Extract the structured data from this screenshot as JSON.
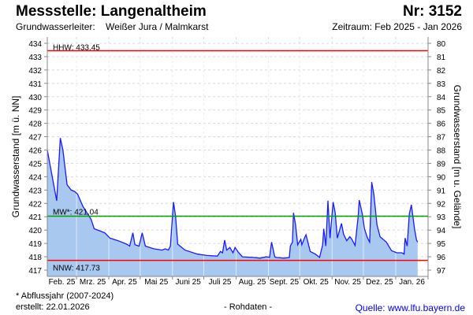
{
  "header": {
    "title": "Messstelle: Langenaltheim",
    "nr": "Nr: 3152",
    "aquifer_label": "Grundwasserleiter:",
    "aquifer_value": "Weißer Jura / Malmkarst",
    "period": "Zeitraum: Feb 2025 - Jan 2026"
  },
  "footer": {
    "note": "* Abflussjahr (2007-2024)",
    "created": "erstellt:  22.01.2026",
    "raw": "- Rohdaten -",
    "source": "Quelle: www.lfu.bayern.de"
  },
  "chart_data": {
    "type": "area",
    "title": "Messstelle: Langenaltheim",
    "ylabel": "Grundwasserstand [m ü. NN]",
    "y2label": "Grundwasserstand [m u. Gelände]",
    "ylim": [
      417,
      434
    ],
    "y2lim": [
      97,
      80
    ],
    "yticks": [
      434,
      433,
      432,
      431,
      430,
      429,
      428,
      427,
      426,
      425,
      424,
      423,
      422,
      421,
      420,
      419,
      418,
      417
    ],
    "y2ticks": [
      80,
      81,
      82,
      83,
      84,
      85,
      86,
      87,
      88,
      89,
      90,
      91,
      92,
      93,
      94,
      95,
      96,
      97
    ],
    "x_unit": "days since 2025-02-01",
    "xlim": [
      0,
      365
    ],
    "month_starts": [
      0,
      28,
      59,
      89,
      120,
      150,
      181,
      212,
      242,
      273,
      303,
      334,
      365
    ],
    "xtick_labels": [
      "Feb. 25",
      "Mrz. 25",
      "Apr. 25",
      "Mai 25",
      "Juni 25",
      "Juli 25",
      "Aug. 25",
      "Sept. 25",
      "Okt. 25",
      "Nov. 25",
      "Dez. 25",
      "Jan. 26"
    ],
    "grid": true,
    "reference_lines": [
      {
        "label": "HHW: 433.45",
        "value": 433.45,
        "color": "#ff0000"
      },
      {
        "label": "MW*: 421.04",
        "value": 421.04,
        "color": "#00a000"
      },
      {
        "label": "NNW: 417.73",
        "value": 417.73,
        "color": "#ff0000"
      }
    ],
    "series": [
      {
        "name": "Grundwasserstand",
        "line_color": "#1a1aff",
        "fill_color": "#a8c8f0",
        "x": [
          0,
          9,
          12.5,
          15,
          19,
          23,
          26,
          29,
          34,
          42,
          45,
          50,
          55,
          60,
          68,
          76,
          79,
          82,
          84,
          88,
          91,
          94,
          102,
          110,
          113,
          116,
          118,
          121,
          123,
          125,
          132,
          144,
          153,
          163,
          166,
          168,
          170,
          172,
          175,
          178,
          180,
          183,
          187,
          197,
          204,
          210,
          213,
          215,
          218,
          219,
          227,
          232,
          233,
          235,
          236,
          238,
          240,
          243,
          244,
          247,
          248,
          252,
          257,
          261,
          264,
          265,
          267,
          269,
          271,
          274,
          276,
          278,
          282,
          284,
          287,
          290,
          292,
          295,
          298,
          299,
          302,
          304,
          307,
          309,
          311,
          313,
          316,
          319,
          325,
          330,
          335,
          340,
          342,
          343,
          345,
          347,
          349,
          352,
          354,
          355
        ],
        "y": [
          426.0,
          422.2,
          426.9,
          426.0,
          423.4,
          423.0,
          422.9,
          422.7,
          421.8,
          420.8,
          420.1,
          419.95,
          419.8,
          419.4,
          419.2,
          418.95,
          418.8,
          419.8,
          418.9,
          418.8,
          419.8,
          418.8,
          418.6,
          418.5,
          418.6,
          418.5,
          418.8,
          422.1,
          421.0,
          418.95,
          418.5,
          418.2,
          418.1,
          418.05,
          418.4,
          418.3,
          419.25,
          418.5,
          418.7,
          418.3,
          418.7,
          418.35,
          418.0,
          417.95,
          417.9,
          418.0,
          417.95,
          419.1,
          418.0,
          417.95,
          417.9,
          417.95,
          418.8,
          419.1,
          421.3,
          420.4,
          418.9,
          419.3,
          418.9,
          419.5,
          419.65,
          418.4,
          418.2,
          417.95,
          418.9,
          420.1,
          418.8,
          422.2,
          419.4,
          422.1,
          421.3,
          419.4,
          420.5,
          419.7,
          419.2,
          419.5,
          419.3,
          418.85,
          421.0,
          422.25,
          421.2,
          420.1,
          419.4,
          419.1,
          423.6,
          422.7,
          420.4,
          419.5,
          419.1,
          418.45,
          418.3,
          418.3,
          418.2,
          419.4,
          418.8,
          421.2,
          421.9,
          420.1,
          419.25,
          419.1
        ]
      }
    ]
  }
}
